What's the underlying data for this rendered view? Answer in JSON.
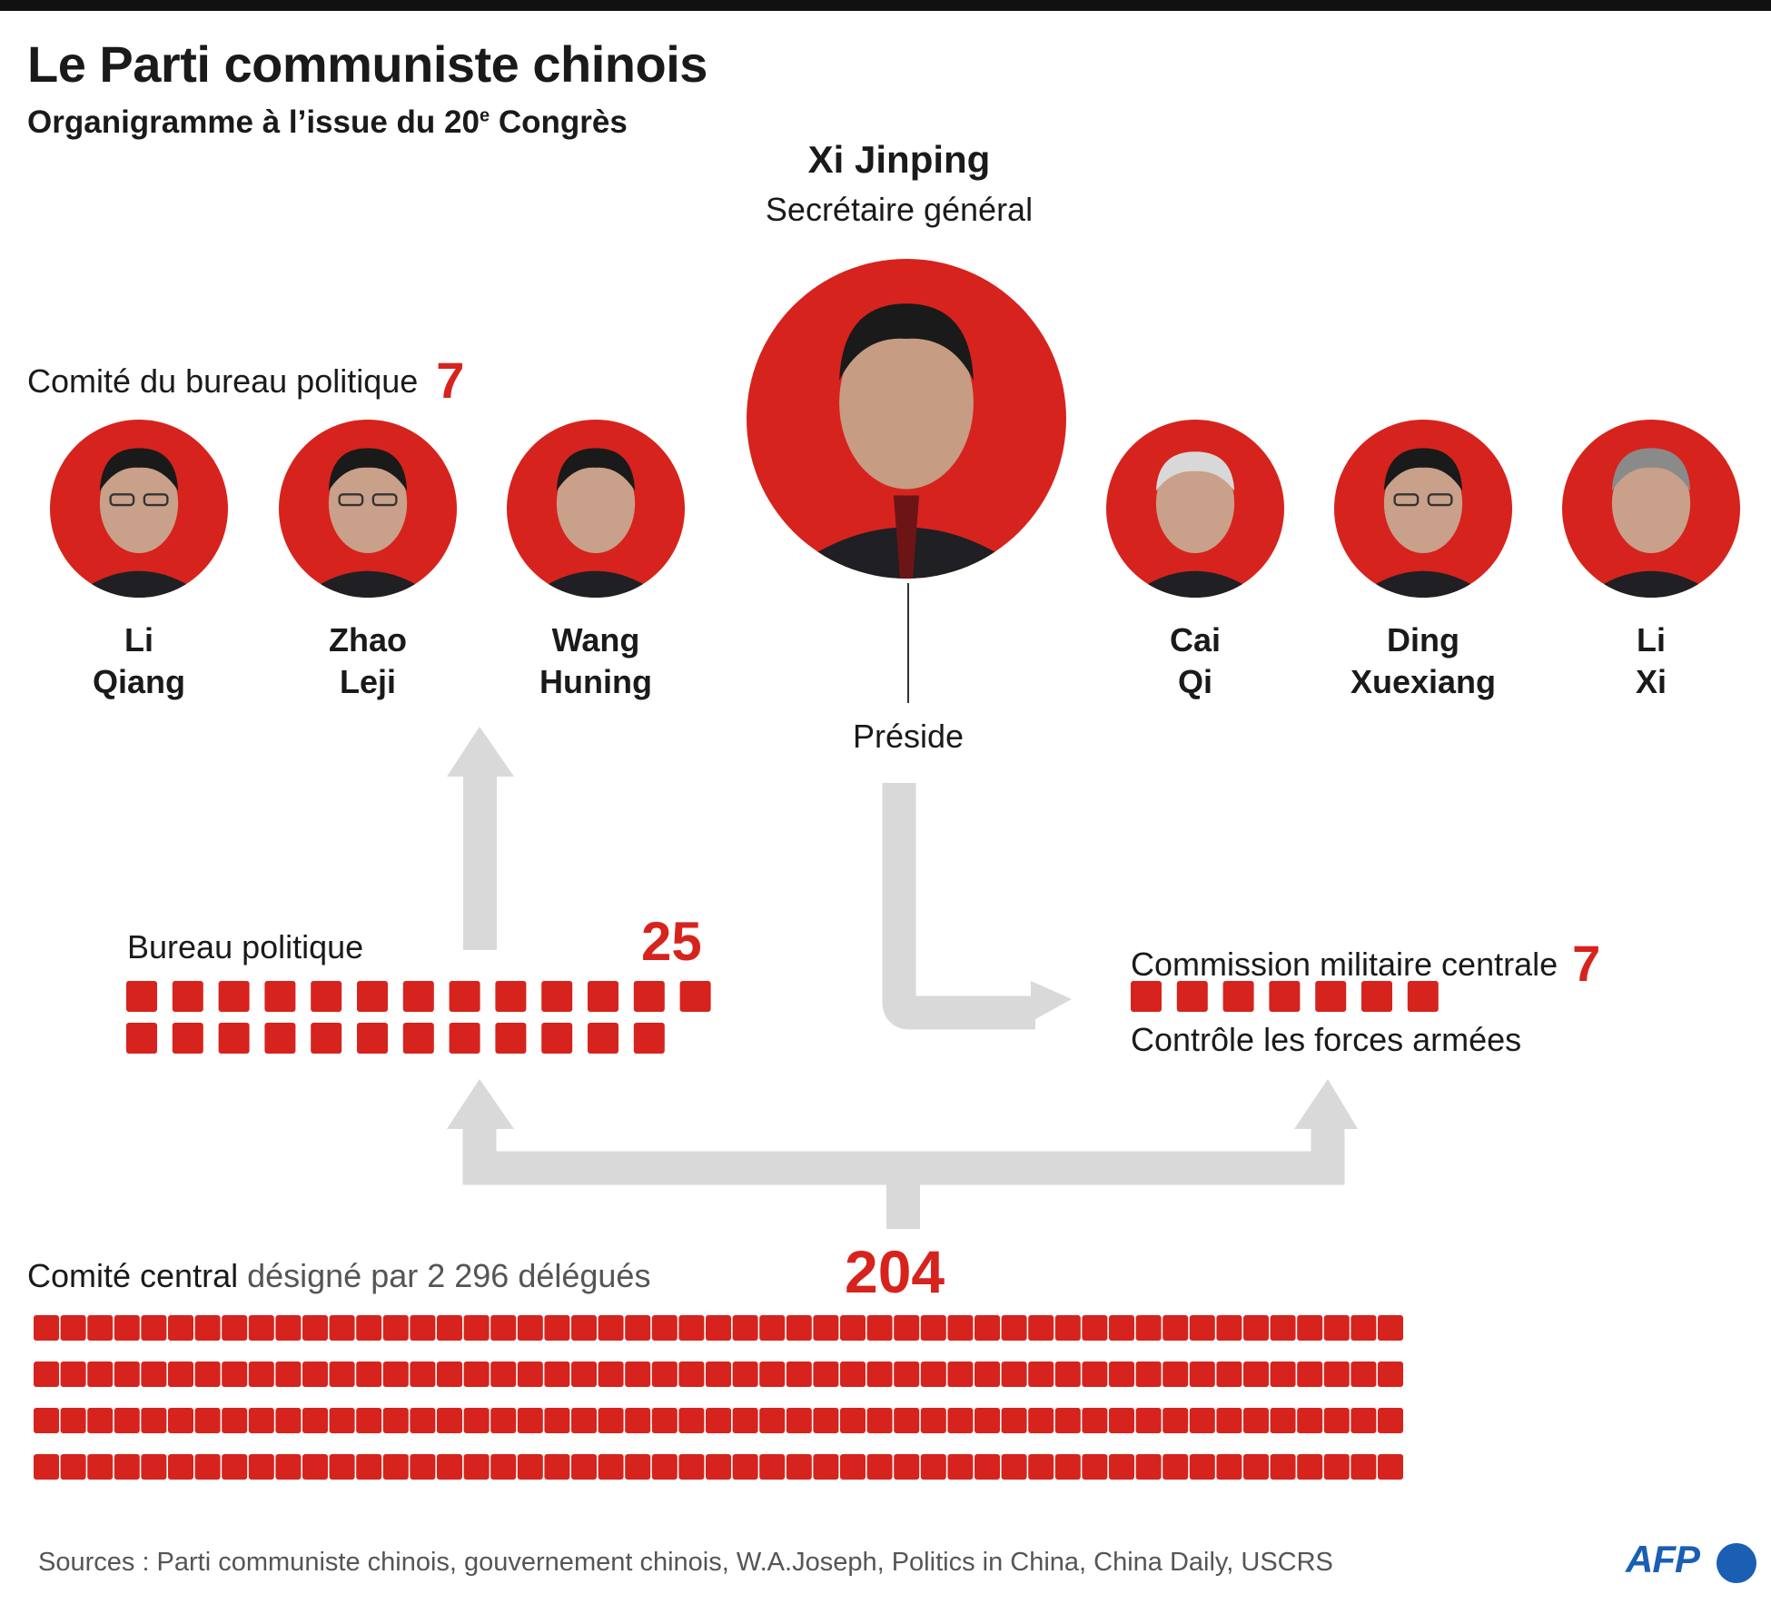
{
  "header": {
    "title": "Le Parti communiste chinois",
    "subtitle_prefix": "Organigramme à l’issue du 20",
    "subtitle_sup": "e",
    "subtitle_suffix": " Congrès"
  },
  "leader": {
    "name": "Xi Jinping",
    "role": "Secrétaire général"
  },
  "standing_committee": {
    "label": "Comité du bureau politique",
    "count": "7",
    "members": [
      {
        "first": "Li",
        "last": "Qiang"
      },
      {
        "first": "Zhao",
        "last": "Leji"
      },
      {
        "first": "Wang",
        "last": "Huning"
      },
      {
        "first": "Cai",
        "last": "Qi"
      },
      {
        "first": "Ding",
        "last": "Xuexiang"
      },
      {
        "first": "Li",
        "last": "Xi"
      }
    ]
  },
  "preside_label": "Préside",
  "politburo": {
    "label": "Bureau politique",
    "count": "25",
    "members": 25
  },
  "military_commission": {
    "label": "Commission militaire centrale",
    "count": "7",
    "members": 7,
    "note": "Contrôle les forces armées"
  },
  "central_committee": {
    "label_bold": "Comité central",
    "label_rest": " désigné par 2 296 délégués",
    "count": "204",
    "members": 204
  },
  "footer": {
    "sources": "Sources : Parti communiste chinois, gouvernement chinois, W.A.Joseph, Politics in China, China Daily, USCRS",
    "logo": "AFP"
  },
  "colors": {
    "accent": "#d7231d",
    "arrow": "#d9d9d9",
    "logo": "#1a5fb4"
  }
}
